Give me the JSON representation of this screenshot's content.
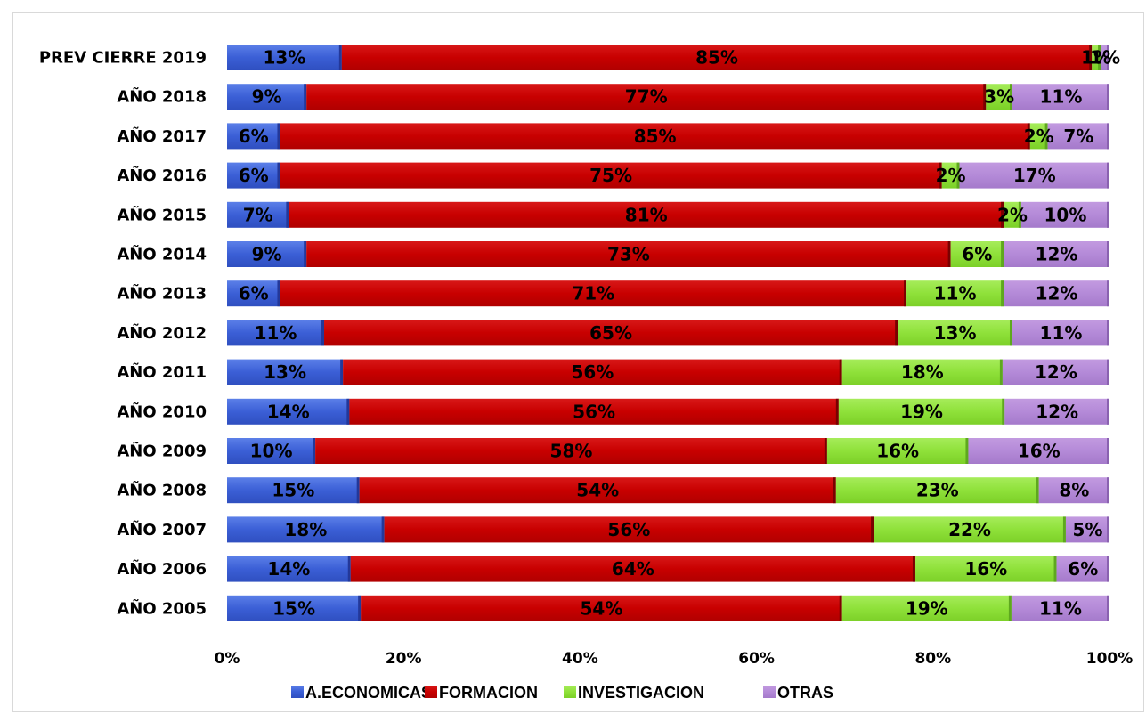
{
  "chart_data": {
    "type": "bar",
    "orientation": "horizontal",
    "stacked": "percent",
    "categories": [
      "PREV CIERRE 2019",
      "AÑO 2018",
      "AÑO 2017",
      "AÑO 2016",
      "AÑO 2015",
      "AÑO 2014",
      "AÑO 2013",
      "AÑO 2012",
      "AÑO 2011",
      "AÑO 2010",
      "AÑO 2009",
      "AÑO 2008",
      "AÑO 2007",
      "AÑO 2006",
      "AÑO 2005"
    ],
    "series": [
      {
        "name": "A.ECONOMICAS",
        "color": "#4164d8",
        "values": [
          13,
          9,
          6,
          6,
          7,
          9,
          6,
          11,
          13,
          14,
          10,
          15,
          18,
          14,
          15
        ]
      },
      {
        "name": "FORMACION",
        "color": "#cc0000",
        "values": [
          85,
          77,
          85,
          75,
          81,
          73,
          71,
          65,
          56,
          56,
          58,
          54,
          56,
          64,
          54
        ]
      },
      {
        "name": "INVESTIGACION",
        "color": "#8fe13a",
        "values": [
          1,
          3,
          2,
          2,
          2,
          6,
          11,
          13,
          18,
          19,
          16,
          23,
          22,
          16,
          19
        ]
      },
      {
        "name": "OTRAS",
        "color": "#b48ad8",
        "values": [
          1,
          11,
          7,
          17,
          10,
          12,
          12,
          11,
          12,
          12,
          16,
          8,
          5,
          6,
          11
        ]
      }
    ],
    "x_ticks": [
      "0%",
      "20%",
      "40%",
      "60%",
      "80%",
      "100%"
    ],
    "xlim": [
      0,
      100
    ],
    "grid": false,
    "legend_position": "bottom",
    "title": "",
    "xlabel": "",
    "ylabel": ""
  }
}
